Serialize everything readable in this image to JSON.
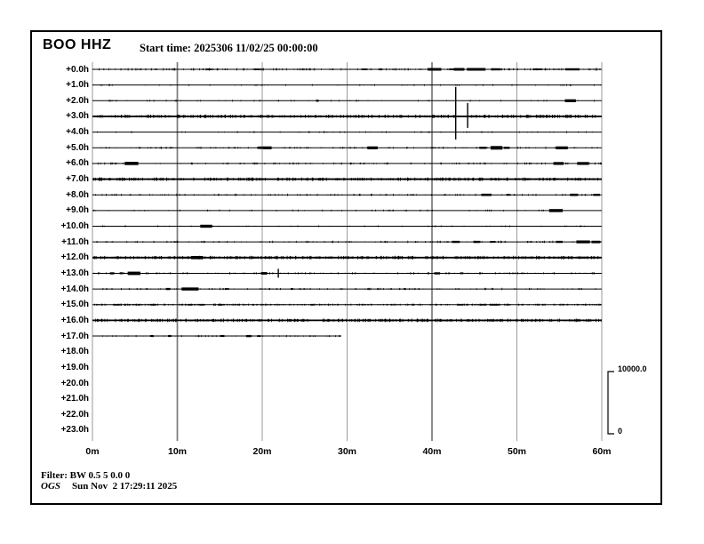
{
  "header": {
    "station": "BOO HHZ",
    "start_time_label": "Start time: 2025306 11/02/25 00:00:00"
  },
  "footer": {
    "filter": "Filter: BW 0.5 5 0.0 0",
    "agency": "OGS",
    "timestamp": "Sun Nov  2 17:29:11 2025"
  },
  "scale_bar": {
    "max": "10000.0",
    "min": "0"
  },
  "colors": {
    "trace": "#000000",
    "grid": "#9a9a9a",
    "grid_emph": "#7a7a7a",
    "frame": "#000000"
  },
  "chart_data": {
    "type": "line",
    "subtype": "helicorder-seismogram",
    "title": "BOO HHZ",
    "start_time": "2025306 11/02/25 00:00:00",
    "amplitude_scale": {
      "max": 10000.0,
      "min": 0
    },
    "grid": "vertical-10min",
    "x_axis": {
      "label_unit": "minutes",
      "tick_labels": [
        "0m",
        "10m",
        "20m",
        "30m",
        "40m",
        "50m",
        "60m"
      ],
      "range_min": [
        0,
        60
      ]
    },
    "y_axis": {
      "label_unit": "hours-offset",
      "rows_total": 24
    },
    "rows": [
      {
        "label": "+0.0h",
        "extent_min": 60,
        "noise": "medium",
        "events": [
          {
            "m": 40.3,
            "w": 1.6,
            "a": 1.5
          },
          {
            "m": 43.2,
            "w": 1.2,
            "a": 1.5
          },
          {
            "m": 45.2,
            "w": 2.2,
            "a": 1.5
          },
          {
            "m": 47.5,
            "w": 1.1,
            "a": 1.2
          },
          {
            "m": 52.5,
            "w": 1.0,
            "a": 1.0
          },
          {
            "m": 56.5,
            "w": 1.6,
            "a": 1.2
          }
        ],
        "spikes": []
      },
      {
        "label": "+1.0h",
        "extent_min": 60,
        "noise": "quiet",
        "events": [],
        "spikes": []
      },
      {
        "label": "+2.0h",
        "extent_min": 60,
        "noise": "quiet",
        "events": [
          {
            "m": 26.5,
            "w": 0.3,
            "a": 1.2
          },
          {
            "m": 56.3,
            "w": 1.3,
            "a": 1.6
          }
        ],
        "spikes": []
      },
      {
        "label": "+3.0h",
        "extent_min": 60,
        "noise": "heavy",
        "events": [],
        "spikes": [
          {
            "m": 42.8,
            "up": 33,
            "down": 26
          },
          {
            "m": 44.2,
            "up": 15,
            "down": 13
          }
        ]
      },
      {
        "label": "+4.0h",
        "extent_min": 60,
        "noise": "quiet",
        "events": [],
        "spikes": []
      },
      {
        "label": "+5.0h",
        "extent_min": 60,
        "noise": "light",
        "events": [
          {
            "m": 19.8,
            "w": 0.6,
            "a": 1.4
          },
          {
            "m": 20.6,
            "w": 1.0,
            "a": 1.6
          },
          {
            "m": 33.0,
            "w": 1.2,
            "a": 1.6
          },
          {
            "m": 46.0,
            "w": 0.8,
            "a": 1.2
          },
          {
            "m": 47.6,
            "w": 1.4,
            "a": 2.0
          },
          {
            "m": 48.8,
            "w": 0.7,
            "a": 1.2
          },
          {
            "m": 55.3,
            "w": 1.4,
            "a": 1.6
          }
        ],
        "spikes": []
      },
      {
        "label": "+6.0h",
        "extent_min": 60,
        "noise": "light",
        "events": [
          {
            "m": 4.6,
            "w": 1.6,
            "a": 1.8
          },
          {
            "m": 54.9,
            "w": 1.2,
            "a": 1.6
          },
          {
            "m": 57.8,
            "w": 1.4,
            "a": 1.6
          }
        ],
        "spikes": []
      },
      {
        "label": "+7.0h",
        "extent_min": 60,
        "noise": "heavy",
        "events": [],
        "spikes": []
      },
      {
        "label": "+8.0h",
        "extent_min": 60,
        "noise": "light",
        "events": [
          {
            "m": 46.4,
            "w": 1.2,
            "a": 1.3
          },
          {
            "m": 49.0,
            "w": 0.5,
            "a": 1.0
          },
          {
            "m": 56.7,
            "w": 0.9,
            "a": 1.3
          },
          {
            "m": 59.4,
            "w": 0.8,
            "a": 1.2
          }
        ],
        "spikes": []
      },
      {
        "label": "+9.0h",
        "extent_min": 60,
        "noise": "quiet",
        "events": [
          {
            "m": 54.6,
            "w": 1.6,
            "a": 1.7
          }
        ],
        "spikes": []
      },
      {
        "label": "+10.0h",
        "extent_min": 60,
        "noise": "quiet",
        "events": [
          {
            "m": 13.4,
            "w": 1.4,
            "a": 1.7
          }
        ],
        "spikes": []
      },
      {
        "label": "+11.0h",
        "extent_min": 60,
        "noise": "light",
        "events": [
          {
            "m": 42.8,
            "w": 0.9,
            "a": 1.2
          },
          {
            "m": 45.3,
            "w": 0.8,
            "a": 1.2
          },
          {
            "m": 47.2,
            "w": 0.6,
            "a": 1.0
          },
          {
            "m": 55.0,
            "w": 0.8,
            "a": 1.2
          },
          {
            "m": 57.8,
            "w": 1.6,
            "a": 1.6
          },
          {
            "m": 59.3,
            "w": 1.0,
            "a": 1.4
          }
        ],
        "spikes": []
      },
      {
        "label": "+12.0h",
        "extent_min": 60,
        "noise": "heavy",
        "events": [
          {
            "m": 12.3,
            "w": 1.4,
            "a": 1.8
          }
        ],
        "spikes": []
      },
      {
        "label": "+13.0h",
        "extent_min": 60,
        "noise": "light",
        "events": [
          {
            "m": 2.3,
            "w": 0.5,
            "a": 1.2
          },
          {
            "m": 3.4,
            "w": 0.4,
            "a": 1.1
          },
          {
            "m": 4.9,
            "w": 1.5,
            "a": 1.9
          },
          {
            "m": 20.2,
            "w": 0.7,
            "a": 1.4
          },
          {
            "m": 40.6,
            "w": 0.7,
            "a": 1.2
          },
          {
            "m": 43.5,
            "w": 0.4,
            "a": 1.0
          }
        ],
        "spikes": [
          {
            "m": 21.9,
            "up": 5,
            "down": 5
          }
        ]
      },
      {
        "label": "+14.0h",
        "extent_min": 60,
        "noise": "light",
        "events": [
          {
            "m": 8.9,
            "w": 0.5,
            "a": 1.2
          },
          {
            "m": 11.5,
            "w": 2.0,
            "a": 1.7
          },
          {
            "m": 15.8,
            "w": 0.4,
            "a": 1.0
          },
          {
            "m": 23.5,
            "w": 0.3,
            "a": 1.0
          }
        ],
        "spikes": []
      },
      {
        "label": "+15.0h",
        "extent_min": 60,
        "noise": "dense",
        "events": [],
        "spikes": []
      },
      {
        "label": "+16.0h",
        "extent_min": 60,
        "noise": "heavy",
        "events": [],
        "spikes": []
      },
      {
        "label": "+17.0h",
        "extent_min": 29.3,
        "noise": "quiet",
        "events": [
          {
            "m": 7.0,
            "w": 0.4,
            "a": 1.1
          },
          {
            "m": 9.1,
            "w": 0.4,
            "a": 1.1
          },
          {
            "m": 15.3,
            "w": 0.5,
            "a": 1.1
          },
          {
            "m": 18.4,
            "w": 0.6,
            "a": 1.2
          },
          {
            "m": 19.6,
            "w": 0.4,
            "a": 1.0
          }
        ],
        "spikes": []
      },
      {
        "label": "+18.0h",
        "extent_min": 0,
        "noise": "none",
        "events": [],
        "spikes": []
      },
      {
        "label": "+19.0h",
        "extent_min": 0,
        "noise": "none",
        "events": [],
        "spikes": []
      },
      {
        "label": "+20.0h",
        "extent_min": 0,
        "noise": "none",
        "events": [],
        "spikes": []
      },
      {
        "label": "+21.0h",
        "extent_min": 0,
        "noise": "none",
        "events": [],
        "spikes": []
      },
      {
        "label": "+22.0h",
        "extent_min": 0,
        "noise": "none",
        "events": [],
        "spikes": []
      },
      {
        "label": "+23.0h",
        "extent_min": 0,
        "noise": "none",
        "events": [],
        "spikes": []
      }
    ]
  }
}
